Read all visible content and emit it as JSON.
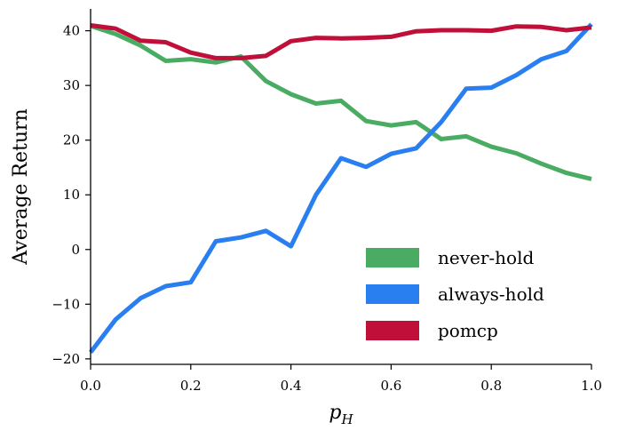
{
  "chart_data": {
    "type": "line",
    "title": "",
    "xlabel": "p_H",
    "xlabel_main": "p",
    "xlabel_sub": "H",
    "ylabel": "Average Return",
    "xlim": [
      0.0,
      1.0
    ],
    "ylim": [
      -21,
      44
    ],
    "xticks": [
      0.0,
      0.2,
      0.4,
      0.6,
      0.8,
      1.0
    ],
    "xtick_labels": [
      "0.0",
      "0.2",
      "0.4",
      "0.6",
      "0.8",
      "1.0"
    ],
    "yticks": [
      -20,
      -10,
      0,
      10,
      20,
      30,
      40
    ],
    "ytick_labels": [
      "−20",
      "−10",
      "0",
      "10",
      "20",
      "30",
      "40"
    ],
    "grid": false,
    "legend_position": "lower-right",
    "x": [
      0.0,
      0.05,
      0.1,
      0.15,
      0.2,
      0.25,
      0.3,
      0.35,
      0.4,
      0.45,
      0.5,
      0.55,
      0.6,
      0.65,
      0.7,
      0.75,
      0.8,
      0.85,
      0.9,
      0.95,
      1.0
    ],
    "series": [
      {
        "name": "never-hold",
        "color": "#4aac62",
        "values": [
          40.9,
          39.4,
          37.3,
          34.5,
          34.8,
          34.2,
          35.3,
          30.8,
          28.4,
          26.7,
          27.2,
          23.5,
          22.7,
          23.3,
          20.2,
          20.7,
          18.8,
          17.6,
          15.7,
          14.0,
          12.9
        ]
      },
      {
        "name": "always-hold",
        "color": "#2a7ff0",
        "values": [
          -18.8,
          -12.8,
          -8.9,
          -6.7,
          -6.0,
          1.5,
          2.2,
          3.4,
          0.6,
          10.0,
          16.7,
          15.1,
          17.5,
          18.5,
          23.3,
          29.4,
          29.6,
          31.9,
          34.8,
          36.3,
          41.2
        ]
      },
      {
        "name": "pomcp",
        "color": "#c0103a",
        "values": [
          41.0,
          40.4,
          38.2,
          37.9,
          36.0,
          35.0,
          35.0,
          35.4,
          38.1,
          38.7,
          38.6,
          38.7,
          38.9,
          39.9,
          40.1,
          40.1,
          40.0,
          40.8,
          40.7,
          40.1,
          40.6
        ]
      }
    ]
  }
}
